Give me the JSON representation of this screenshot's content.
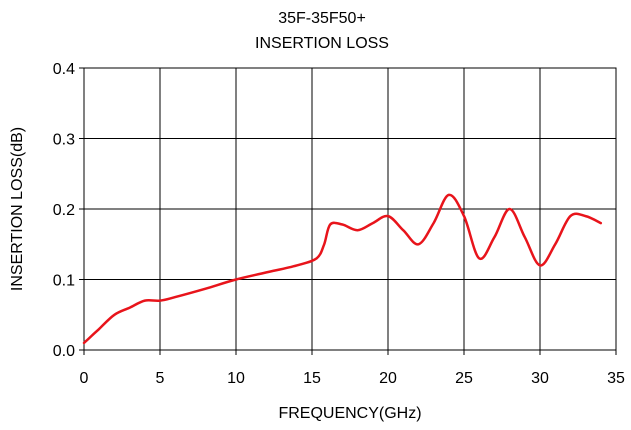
{
  "chart_data": {
    "type": "line",
    "title": "35F-35F50+",
    "subtitle": "INSERTION LOSS",
    "xlabel": "FREQUENCY(GHz)",
    "ylabel": "INSERTION LOSS(dB)",
    "xlim": [
      0,
      35
    ],
    "ylim": [
      0,
      0.4
    ],
    "xticks": [
      0,
      5,
      10,
      15,
      20,
      25,
      30,
      35
    ],
    "xtick_labels": [
      "0",
      "5",
      "10",
      "15",
      "20",
      "25",
      "30",
      "35"
    ],
    "yticks": [
      0,
      0.1,
      0.2,
      0.3,
      0.4
    ],
    "ytick_labels": [
      "0.0",
      "0.1",
      "0.2",
      "0.3",
      "0.4"
    ],
    "grid": true,
    "legend": "none",
    "series": [
      {
        "color": "#e8141b",
        "x": [
          0,
          0.5,
          1,
          2,
          3,
          4,
          5,
          6,
          8,
          10,
          12,
          14,
          15.3,
          15.8,
          16.2,
          17,
          18,
          19,
          20,
          21,
          22,
          23,
          24,
          25,
          26,
          27,
          28,
          29,
          30,
          31,
          32,
          33,
          34
        ],
        "y": [
          0.01,
          0.02,
          0.03,
          0.05,
          0.06,
          0.07,
          0.07,
          0.075,
          0.087,
          0.1,
          0.11,
          0.12,
          0.13,
          0.15,
          0.178,
          0.178,
          0.17,
          0.18,
          0.19,
          0.17,
          0.15,
          0.18,
          0.22,
          0.19,
          0.13,
          0.16,
          0.2,
          0.16,
          0.12,
          0.15,
          0.19,
          0.19,
          0.18
        ]
      }
    ]
  }
}
